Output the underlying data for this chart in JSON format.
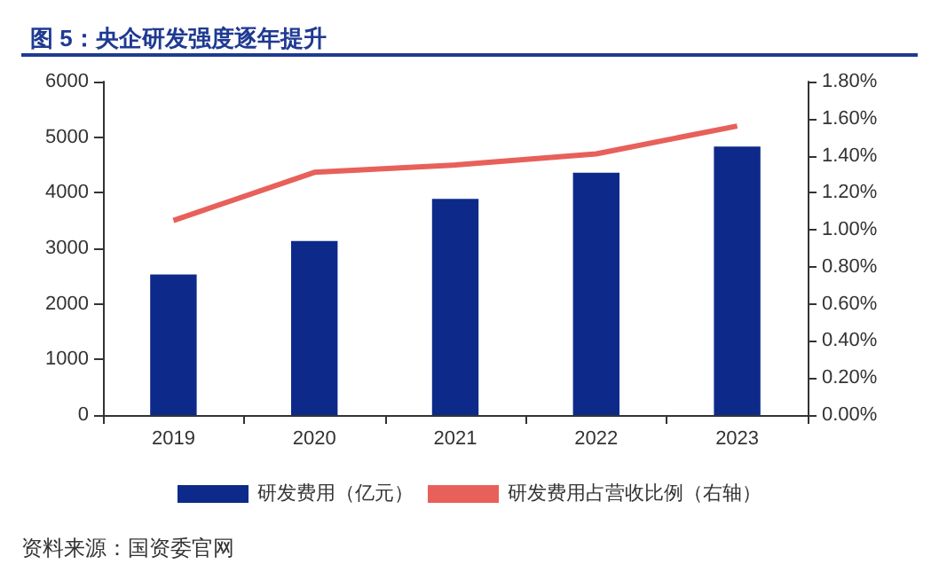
{
  "chart_data": {
    "type": "bar",
    "title": "图 5：央企研发强度逐年提升",
    "categories": [
      "2019",
      "2020",
      "2021",
      "2022",
      "2023"
    ],
    "series": [
      {
        "name": "研发费用（亿元）",
        "color": "#0d2a8a",
        "values": [
          2530,
          3130,
          3890,
          4360,
          4830
        ]
      },
      {
        "name": "研发费用占营收比例（右轴）",
        "type": "line",
        "axis": "y2",
        "color": "#e8605a",
        "marker": "none",
        "values": [
          1.05,
          1.31,
          1.35,
          1.41,
          1.56
        ]
      }
    ],
    "ylim": [
      0,
      6000
    ],
    "yticks": [
      0,
      1000,
      2000,
      3000,
      4000,
      5000,
      6000
    ],
    "y2lim": [
      0,
      1.8
    ],
    "y2ticks": [
      {
        "value": 0,
        "label": "0.00%"
      },
      {
        "value": 0.2,
        "label": "0.20%"
      },
      {
        "value": 0.4,
        "label": "0.40%"
      },
      {
        "value": 0.6,
        "label": "0.60%"
      },
      {
        "value": 0.8,
        "label": "0.80%"
      },
      {
        "value": 1.0,
        "label": "1.00%"
      },
      {
        "value": 1.2,
        "label": "1.20%"
      },
      {
        "value": 1.4,
        "label": "1.40%"
      },
      {
        "value": 1.6,
        "label": "1.60%"
      },
      {
        "value": 1.8,
        "label": "1.80%"
      }
    ],
    "grid": false,
    "legend": "bottom",
    "annotations": [
      "资料来源：国资委官网"
    ]
  }
}
